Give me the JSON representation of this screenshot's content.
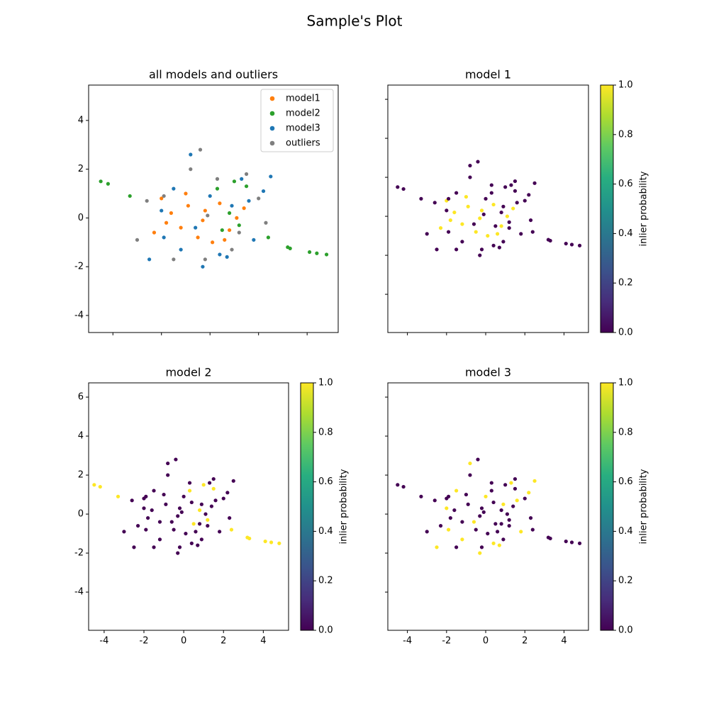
{
  "title": "Sample's Plot",
  "chart_data": [
    {
      "type": "scatter",
      "title": "all models and outliers",
      "legend": "upper right",
      "xlim": [
        -5.0,
        5.28
      ],
      "ylim": [
        -4.7,
        5.45
      ],
      "xticks": [
        -4,
        -2,
        0,
        2,
        4
      ],
      "yticks": [
        -4,
        -2,
        0,
        2,
        4
      ],
      "series": [
        {
          "name": "model1",
          "color": "#ff7f0e",
          "x": [
            -2.0,
            -1.6,
            -1.2,
            -0.9,
            -0.5,
            -0.2,
            0.1,
            0.4,
            0.8,
            1.1,
            -1.8,
            -1.0,
            -0.3,
            0.6,
            1.4,
            -2.3
          ],
          "y": [
            0.8,
            0.2,
            -0.4,
            0.5,
            -0.8,
            0.3,
            -1.0,
            0.6,
            -0.5,
            0.0,
            -0.2,
            1.0,
            -0.1,
            -0.9,
            0.4,
            -0.6
          ]
        },
        {
          "name": "model2",
          "color": "#2ca02c",
          "x": [
            -4.5,
            -4.2,
            -3.3,
            0.3,
            0.5,
            0.8,
            1.2,
            1.5,
            2.4,
            3.2,
            3.3,
            4.1,
            4.4,
            4.8,
            1.0
          ],
          "y": [
            1.5,
            1.4,
            0.9,
            1.2,
            -0.5,
            0.2,
            -0.3,
            1.3,
            -0.8,
            -1.2,
            -1.25,
            -1.4,
            -1.45,
            -1.5,
            1.5
          ]
        },
        {
          "name": "model3",
          "color": "#1f77b4",
          "x": [
            -2.5,
            -2.0,
            -1.5,
            -1.2,
            -0.8,
            -0.3,
            0.0,
            0.4,
            0.9,
            1.3,
            1.8,
            2.2,
            2.5,
            -0.6,
            0.7,
            1.6,
            -1.9
          ],
          "y": [
            -1.7,
            0.3,
            1.2,
            -1.3,
            2.6,
            -2.0,
            0.9,
            -1.5,
            0.5,
            1.6,
            -0.9,
            1.1,
            1.7,
            -0.4,
            -1.6,
            0.7,
            -0.8
          ]
        },
        {
          "name": "outliers",
          "color": "#7f7f7f",
          "x": [
            -3.0,
            -2.6,
            -1.5,
            -0.8,
            -0.4,
            -0.2,
            0.3,
            0.9,
            1.5,
            2.0,
            2.3,
            -1.9,
            1.2,
            -0.1
          ],
          "y": [
            -0.9,
            0.7,
            -1.7,
            2.0,
            2.8,
            -1.7,
            1.6,
            -1.3,
            1.8,
            0.8,
            -0.2,
            0.9,
            -0.6,
            0.1
          ]
        }
      ]
    },
    {
      "type": "scatter",
      "title": "model 1",
      "colormap": "viridis",
      "colorbar_label": "inlier probability",
      "xlim": [
        -5.0,
        5.25
      ],
      "ylim": [
        -5.96,
        6.73
      ],
      "xticks": [
        -4,
        -2,
        0,
        2,
        4
      ],
      "yticks": [
        -4,
        -2,
        0,
        2,
        4,
        6
      ],
      "clim": [
        0,
        1
      ],
      "cticks": [
        {
          "value": 0,
          "label": "0.0"
        },
        0.2,
        0.4,
        0.6,
        0.8,
        {
          "value": 1,
          "label": "1.0"
        }
      ],
      "x": [
        -2.0,
        -1.6,
        -1.2,
        -0.9,
        -0.5,
        -0.2,
        0.1,
        0.4,
        0.8,
        1.1,
        -1.8,
        -1.0,
        -0.3,
        0.6,
        1.4,
        -2.3,
        -4.5,
        -4.2,
        -3.3,
        0.3,
        0.5,
        0.8,
        1.2,
        1.5,
        2.4,
        3.2,
        3.3,
        4.1,
        4.4,
        4.8,
        1.0,
        -2.5,
        -2.0,
        -1.5,
        -1.2,
        -0.8,
        -0.3,
        0.0,
        0.4,
        0.9,
        1.3,
        1.8,
        2.2,
        2.5,
        -0.6,
        0.7,
        1.6,
        -1.9,
        -3.0,
        -2.6,
        -1.5,
        -0.8,
        -0.4,
        -0.2,
        0.3,
        0.9,
        1.5,
        2.0,
        2.3,
        -1.9,
        1.2,
        -0.1
      ],
      "y": [
        0.8,
        0.2,
        -0.4,
        0.5,
        -0.8,
        0.3,
        -1.0,
        0.6,
        -0.5,
        0.0,
        -0.2,
        1.0,
        -0.1,
        -0.9,
        0.4,
        -0.6,
        1.5,
        1.4,
        0.9,
        1.2,
        -0.5,
        0.2,
        -0.3,
        1.3,
        -0.8,
        -1.2,
        -1.25,
        -1.4,
        -1.45,
        -1.5,
        1.5,
        -1.7,
        0.3,
        1.2,
        -1.3,
        2.6,
        -2.0,
        0.9,
        -1.5,
        0.5,
        1.6,
        -0.9,
        1.1,
        1.7,
        -0.4,
        -1.6,
        0.7,
        -0.8,
        -0.9,
        0.7,
        -1.7,
        2.0,
        2.8,
        -1.7,
        1.6,
        -1.3,
        1.8,
        0.8,
        -0.2,
        0.9,
        -0.6,
        0.1
      ],
      "values": [
        1,
        1,
        1,
        1,
        1,
        1,
        1,
        1,
        1,
        1,
        1,
        1,
        1,
        1,
        1,
        1,
        0,
        0,
        0,
        0,
        0,
        0,
        0,
        0,
        0,
        0,
        0,
        0,
        0,
        0,
        0,
        0,
        0,
        0,
        0,
        0,
        0,
        0,
        0,
        0,
        0,
        0,
        0,
        0,
        0,
        0,
        0,
        0,
        0,
        0,
        0,
        0,
        0,
        0,
        0,
        0,
        0,
        0,
        0,
        0,
        0,
        0
      ]
    },
    {
      "type": "scatter",
      "title": "model 2",
      "colormap": "viridis",
      "colorbar_label": "inlier probability",
      "xlim": [
        -4.78,
        5.27
      ],
      "ylim": [
        -5.96,
        6.73
      ],
      "xticks": [
        -4,
        -2,
        0,
        2,
        4
      ],
      "yticks": [
        -4,
        -2,
        0,
        2,
        4,
        6
      ],
      "clim": [
        0,
        1
      ],
      "cticks": [
        {
          "value": 0,
          "label": "0.0"
        },
        0.2,
        0.4,
        0.6,
        0.8,
        {
          "value": 1,
          "label": "1.0"
        }
      ],
      "x": [
        -2.0,
        -1.6,
        -1.2,
        -0.9,
        -0.5,
        -0.2,
        0.1,
        0.4,
        0.8,
        1.1,
        -1.8,
        -1.0,
        -0.3,
        0.6,
        1.4,
        -2.3,
        -4.5,
        -4.2,
        -3.3,
        0.3,
        0.5,
        0.8,
        1.2,
        1.5,
        2.4,
        3.2,
        3.3,
        4.1,
        4.4,
        4.8,
        1.0,
        -2.5,
        -2.0,
        -1.5,
        -1.2,
        -0.8,
        -0.3,
        0.0,
        0.4,
        0.9,
        1.3,
        1.8,
        2.2,
        2.5,
        -0.6,
        0.7,
        1.6,
        -1.9,
        -3.0,
        -2.6,
        -1.5,
        -0.8,
        -0.4,
        -0.2,
        0.3,
        0.9,
        1.5,
        2.0,
        2.3,
        -1.9,
        1.2,
        -0.1
      ],
      "y": [
        0.8,
        0.2,
        -0.4,
        0.5,
        -0.8,
        0.3,
        -1.0,
        0.6,
        -0.5,
        0.0,
        -0.2,
        1.0,
        -0.1,
        -0.9,
        0.4,
        -0.6,
        1.5,
        1.4,
        0.9,
        1.2,
        -0.5,
        0.2,
        -0.3,
        1.3,
        -0.8,
        -1.2,
        -1.25,
        -1.4,
        -1.45,
        -1.5,
        1.5,
        -1.7,
        0.3,
        1.2,
        -1.3,
        2.6,
        -2.0,
        0.9,
        -1.5,
        0.5,
        1.6,
        -0.9,
        1.1,
        1.7,
        -0.4,
        -1.6,
        0.7,
        -0.8,
        -0.9,
        0.7,
        -1.7,
        2.0,
        2.8,
        -1.7,
        1.6,
        -1.3,
        1.8,
        0.8,
        -0.2,
        0.9,
        -0.6,
        0.1
      ],
      "values": [
        0,
        0,
        0,
        0,
        0,
        0,
        0,
        0,
        0,
        0,
        0,
        0,
        0,
        0,
        0,
        0,
        1,
        1,
        1,
        1,
        1,
        1,
        1,
        1,
        1,
        1,
        1,
        1,
        1,
        1,
        1,
        0,
        0,
        0,
        0,
        0,
        0,
        0,
        0,
        0,
        0,
        0,
        0,
        0,
        0,
        0,
        0,
        0,
        0,
        0,
        0,
        0,
        0,
        0,
        0,
        0,
        0,
        0,
        0,
        0,
        0,
        0
      ]
    },
    {
      "type": "scatter",
      "title": "model 3",
      "colormap": "viridis",
      "colorbar_label": "inlier probability",
      "xlim": [
        -5.0,
        5.25
      ],
      "ylim": [
        -5.96,
        6.73
      ],
      "xticks": [
        -4,
        -2,
        0,
        2,
        4
      ],
      "yticks": [
        -4,
        -2,
        0,
        2,
        4,
        6
      ],
      "clim": [
        0,
        1
      ],
      "cticks": [
        {
          "value": 0,
          "label": "0.0"
        },
        0.2,
        0.4,
        0.6,
        0.8,
        {
          "value": 1,
          "label": "1.0"
        }
      ],
      "x": [
        -2.0,
        -1.6,
        -1.2,
        -0.9,
        -0.5,
        -0.2,
        0.1,
        0.4,
        0.8,
        1.1,
        -1.8,
        -1.0,
        -0.3,
        0.6,
        1.4,
        -2.3,
        -4.5,
        -4.2,
        -3.3,
        0.3,
        0.5,
        0.8,
        1.2,
        1.5,
        2.4,
        3.2,
        3.3,
        4.1,
        4.4,
        4.8,
        1.0,
        -2.5,
        -2.0,
        -1.5,
        -1.2,
        -0.8,
        -0.3,
        0.0,
        0.4,
        0.9,
        1.3,
        1.8,
        2.2,
        2.5,
        -0.6,
        0.7,
        1.6,
        -1.9,
        -3.0,
        -2.6,
        -1.5,
        -0.8,
        -0.4,
        -0.2,
        0.3,
        0.9,
        1.5,
        2.0,
        2.3,
        -1.9,
        1.2,
        -0.1
      ],
      "y": [
        0.8,
        0.2,
        -0.4,
        0.5,
        -0.8,
        0.3,
        -1.0,
        0.6,
        -0.5,
        0.0,
        -0.2,
        1.0,
        -0.1,
        -0.9,
        0.4,
        -0.6,
        1.5,
        1.4,
        0.9,
        1.2,
        -0.5,
        0.2,
        -0.3,
        1.3,
        -0.8,
        -1.2,
        -1.25,
        -1.4,
        -1.45,
        -1.5,
        1.5,
        -1.7,
        0.3,
        1.2,
        -1.3,
        2.6,
        -2.0,
        0.9,
        -1.5,
        0.5,
        1.6,
        -0.9,
        1.1,
        1.7,
        -0.4,
        -1.6,
        0.7,
        -0.8,
        -0.9,
        0.7,
        -1.7,
        2.0,
        2.8,
        -1.7,
        1.6,
        -1.3,
        1.8,
        0.8,
        -0.2,
        0.9,
        -0.6,
        0.1
      ],
      "values": [
        0,
        0,
        0,
        0,
        0,
        0,
        0,
        0,
        0,
        0,
        0,
        0,
        0,
        0,
        0,
        0,
        0,
        0,
        0,
        0,
        0,
        0,
        0,
        0,
        0,
        0,
        0,
        0,
        0,
        0,
        0,
        1,
        1,
        1,
        1,
        1,
        1,
        1,
        1,
        1,
        1,
        1,
        1,
        1,
        1,
        1,
        1,
        1,
        0,
        0,
        0,
        0,
        0,
        0,
        0,
        0,
        0,
        0,
        0,
        0,
        0,
        0
      ]
    }
  ]
}
